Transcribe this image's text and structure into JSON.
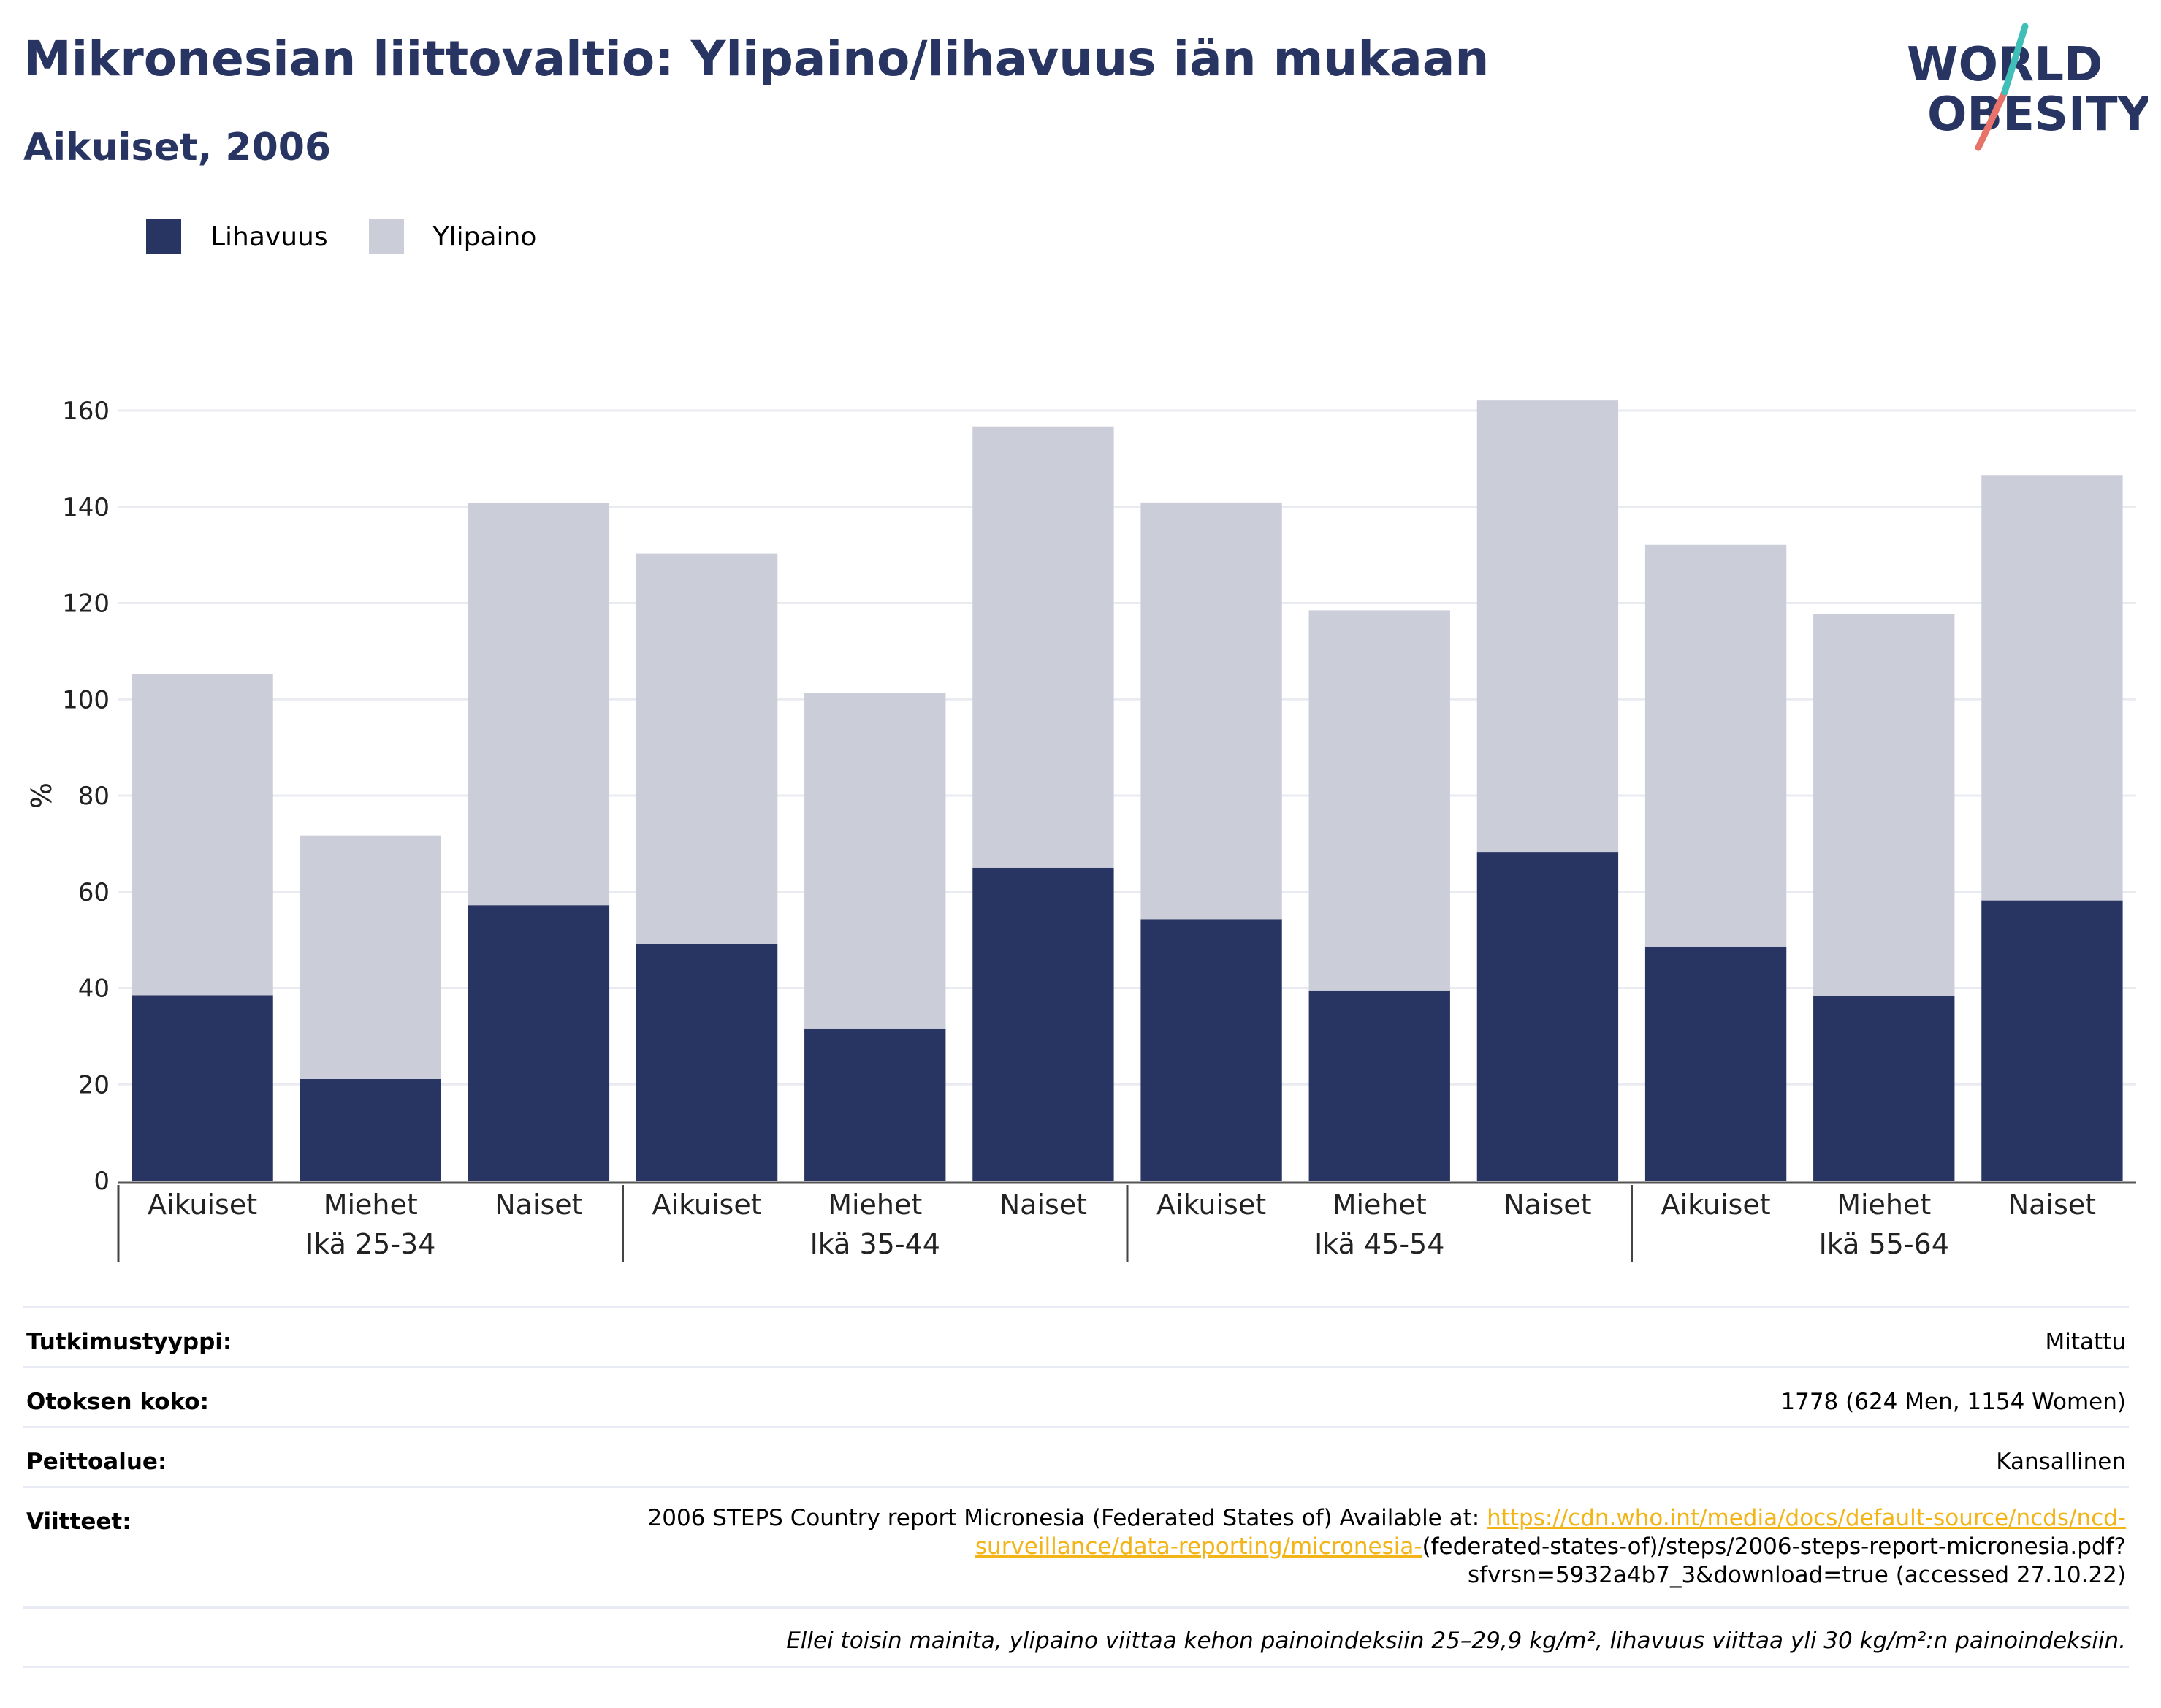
{
  "title": "Mikronesian liittovaltio: Ylipaino/lihavuus iän mukaan",
  "subtitle": "Aikuiset, 2006",
  "logo": {
    "line1": "WORLD",
    "line2": "OBESITY"
  },
  "legend": [
    {
      "label": "Lihavuus",
      "color": "#283462"
    },
    {
      "label": "Ylipaino",
      "color": "#cbcdd9"
    }
  ],
  "chart_data": {
    "type": "bar",
    "stacked": true,
    "ylabel": "%",
    "ylim": [
      0,
      160
    ],
    "yticks": [
      0,
      20,
      40,
      60,
      80,
      100,
      120,
      140,
      160
    ],
    "grid": true,
    "legend_position": "top-left",
    "categories": [
      "Aikuiset",
      "Miehet",
      "Naiset",
      "Aikuiset",
      "Miehet",
      "Naiset",
      "Aikuiset",
      "Miehet",
      "Naiset",
      "Aikuiset",
      "Miehet",
      "Naiset"
    ],
    "groups": [
      "Ikä 25-34",
      "Ikä 35-44",
      "Ikä 45-54",
      "Ikä 55-64"
    ],
    "series": [
      {
        "name": "Lihavuus",
        "color": "#283462",
        "values": [
          38.5,
          21.1,
          57.2,
          49.2,
          31.6,
          65.0,
          54.3,
          39.5,
          68.3,
          48.6,
          38.3,
          58.2
        ]
      },
      {
        "name": "Ylipaino",
        "color": "#cbcdd9",
        "values": [
          66.8,
          50.6,
          83.6,
          81.1,
          69.8,
          91.7,
          86.6,
          79.0,
          93.8,
          83.5,
          79.4,
          88.4
        ]
      }
    ]
  },
  "info": {
    "study_type_label": "Tutkimustyyppi:",
    "study_type_value": "Mitattu",
    "sample_label": "Otoksen koko:",
    "sample_value": "1778 (624 Men, 1154 Women)",
    "coverage_label": "Peittoalue:",
    "coverage_value": "Kansallinen",
    "refs_label": "Viitteet:",
    "refs_text_before": "2006 STEPS Country report Micronesia (Federated States of) Available at: ",
    "refs_link": "https://cdn.who.int/media/docs/default-source/ncds/ncd-surveillance/data-reporting/micronesia-",
    "refs_text_after": "(federated-states-of)/steps/2006-steps-report-micronesia.pdf?sfvrsn=5932a4b7_3&download=true (accessed 27.10.22)",
    "footnote": "Ellei toisin mainita, ylipaino viittaa kehon painoindeksiin 25–29,9 kg/m², lihavuus viittaa yli 30 kg/m²:n painoindeksiin."
  }
}
